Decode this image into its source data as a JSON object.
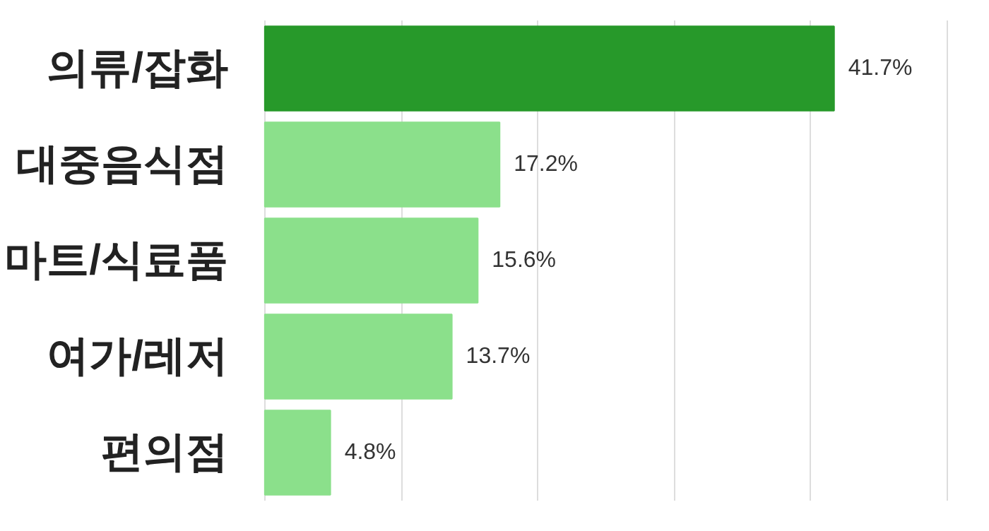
{
  "chart_data": {
    "type": "bar",
    "orientation": "horizontal",
    "categories": [
      "의류/잡화",
      "대중음식점",
      "마트/식료품",
      "여가/레저",
      "편의점"
    ],
    "values": [
      41.7,
      17.2,
      15.6,
      13.7,
      4.8
    ],
    "value_labels": [
      "41.7%",
      "17.2%",
      "15.6%",
      "13.7%",
      "4.8%"
    ],
    "colors": [
      "#27992a",
      "#8be08b",
      "#8be08b",
      "#8be08b",
      "#8be08b"
    ],
    "xticks": [
      {
        "value": 0,
        "label": null
      },
      {
        "value": 10,
        "label": null
      },
      {
        "value": 20,
        "label": null
      },
      {
        "value": 30,
        "label": null
      },
      {
        "value": 40,
        "label": null
      },
      {
        "value": 50,
        "label": null
      }
    ],
    "grid": "x",
    "tick_labels": "y"
  }
}
